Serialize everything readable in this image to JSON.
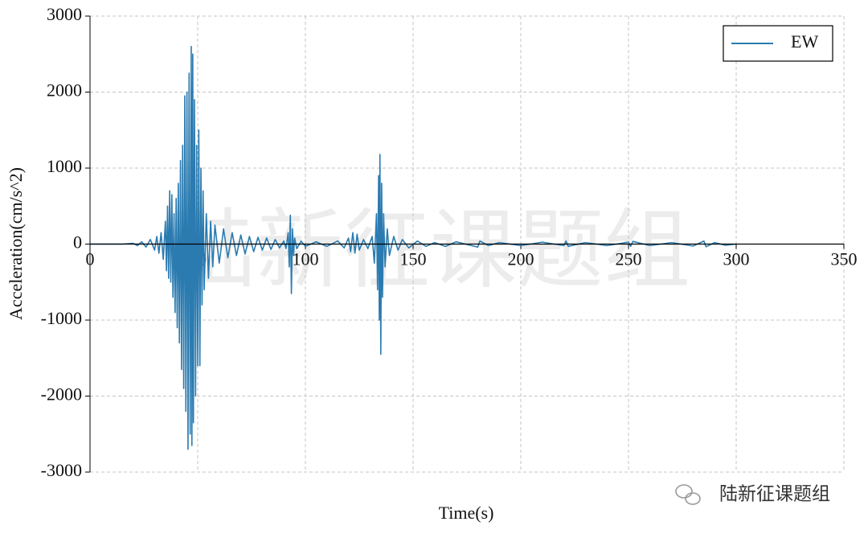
{
  "chart_data": {
    "type": "line",
    "x_label": "Time(s)",
    "y_label": "Acceleration(cm/s^2)",
    "watermark": "陆新征课题组",
    "credit": "陆新征课题组",
    "xlim": [
      0,
      350
    ],
    "xticks": [
      0,
      50,
      100,
      150,
      200,
      250,
      300,
      350
    ],
    "ylim": [
      -3000,
      3000
    ],
    "yticks": [
      -3000,
      -2000,
      -1000,
      0,
      1000,
      2000,
      3000
    ],
    "grid": true,
    "legend": "upper right",
    "x": [
      0,
      15,
      20,
      22,
      24,
      26,
      28,
      30,
      31,
      32,
      33,
      34,
      35,
      35.5,
      36,
      36.5,
      37,
      37.5,
      38,
      38.5,
      39,
      39.5,
      40,
      40.5,
      41,
      41.5,
      42,
      42.5,
      43,
      43.5,
      44,
      44.5,
      45,
      45.5,
      46,
      46.5,
      47,
      47.3,
      47.7,
      48,
      48.5,
      49,
      49.5,
      50,
      50.5,
      51,
      51.5,
      52,
      52.5,
      53,
      54,
      55,
      56,
      57,
      58,
      60,
      62,
      64,
      66,
      68,
      70,
      72,
      74,
      76,
      78,
      80,
      82,
      84,
      86,
      88,
      90,
      91,
      92,
      92.5,
      93,
      93.5,
      94,
      94.5,
      95,
      96,
      98,
      100,
      105,
      110,
      115,
      118,
      120,
      121,
      122,
      123,
      124,
      125,
      127,
      129,
      131,
      132,
      133,
      133.5,
      134,
      134.3,
      134.6,
      135,
      135.4,
      135.8,
      136.3,
      137,
      138,
      139,
      141,
      143,
      145,
      148,
      152,
      156,
      160,
      165,
      170,
      180,
      181,
      185,
      190,
      200,
      210,
      220,
      221,
      222,
      230,
      240,
      250,
      251,
      252,
      260,
      270,
      280,
      285,
      286,
      290,
      295,
      300
    ],
    "series": [
      {
        "name": "EW",
        "color": "#2b7bb0",
        "values": [
          0,
          0,
          10,
          -20,
          30,
          -40,
          60,
          -80,
          100,
          -120,
          150,
          -200,
          300,
          -350,
          500,
          -450,
          700,
          -500,
          650,
          -700,
          400,
          -900,
          600,
          -1100,
          800,
          -1300,
          1100,
          -1650,
          1300,
          -1900,
          1950,
          -2200,
          2000,
          -2700,
          2250,
          -2500,
          2600,
          -2650,
          2500,
          -2350,
          1900,
          -2000,
          1300,
          -1600,
          1500,
          -1600,
          1000,
          -800,
          700,
          -600,
          400,
          -450,
          300,
          -300,
          250,
          -250,
          200,
          -180,
          150,
          -150,
          120,
          -130,
          100,
          -100,
          90,
          -80,
          80,
          -70,
          60,
          -50,
          40,
          -60,
          150,
          -300,
          380,
          -650,
          200,
          -150,
          80,
          -60,
          40,
          -30,
          30,
          -30,
          40,
          -50,
          80,
          -100,
          150,
          -120,
          130,
          -80,
          60,
          -60,
          100,
          -250,
          400,
          -600,
          900,
          -1000,
          1180,
          -1450,
          800,
          -700,
          400,
          -300,
          200,
          -150,
          100,
          -80,
          60,
          -50,
          40,
          -30,
          20,
          -30,
          30,
          -40,
          40,
          -20,
          20,
          -20,
          25,
          -20,
          40,
          -30,
          20,
          -20,
          25,
          -30,
          35,
          -20,
          20,
          -25,
          40,
          -35,
          20,
          -15,
          0
        ]
      }
    ]
  }
}
